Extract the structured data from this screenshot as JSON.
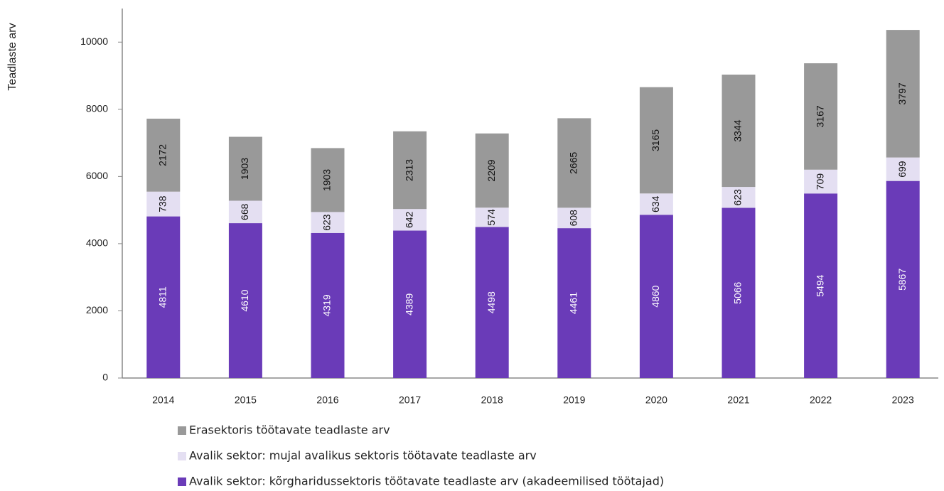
{
  "chart_data": {
    "type": "stacked_bar",
    "y_label": "Teadlaste arv",
    "categories": [
      "2014",
      "2015",
      "2016",
      "2017",
      "2018",
      "2019",
      "2020",
      "2021",
      "2022",
      "2023"
    ],
    "series": [
      {
        "name": "Avalik sektor: kõrgharidussektoris töötavate teadlaste arv (akadeemilised töötajad)",
        "color": "#6a3bb8",
        "label_color": "#ffffff",
        "values": [
          4811,
          4610,
          4319,
          4389,
          4498,
          4461,
          4860,
          5066,
          5494,
          5867
        ]
      },
      {
        "name": "Avalik sektor: mujal avalikus sektoris töötavate teadlaste arv",
        "color": "#e4dff2",
        "label_color": "#111111",
        "values": [
          738,
          668,
          623,
          642,
          574,
          608,
          634,
          623,
          709,
          699
        ]
      },
      {
        "name": "Erasektoris töötavate teadlaste arv",
        "color": "#999999",
        "label_color": "#111111",
        "values": [
          2172,
          1903,
          1903,
          2313,
          2209,
          2665,
          3165,
          3344,
          3167,
          3797
        ]
      }
    ],
    "ylim": [
      0,
      11000
    ],
    "yticks": [
      0,
      2000,
      4000,
      6000,
      8000,
      10000
    ],
    "grid": false,
    "legend": "bottom"
  }
}
